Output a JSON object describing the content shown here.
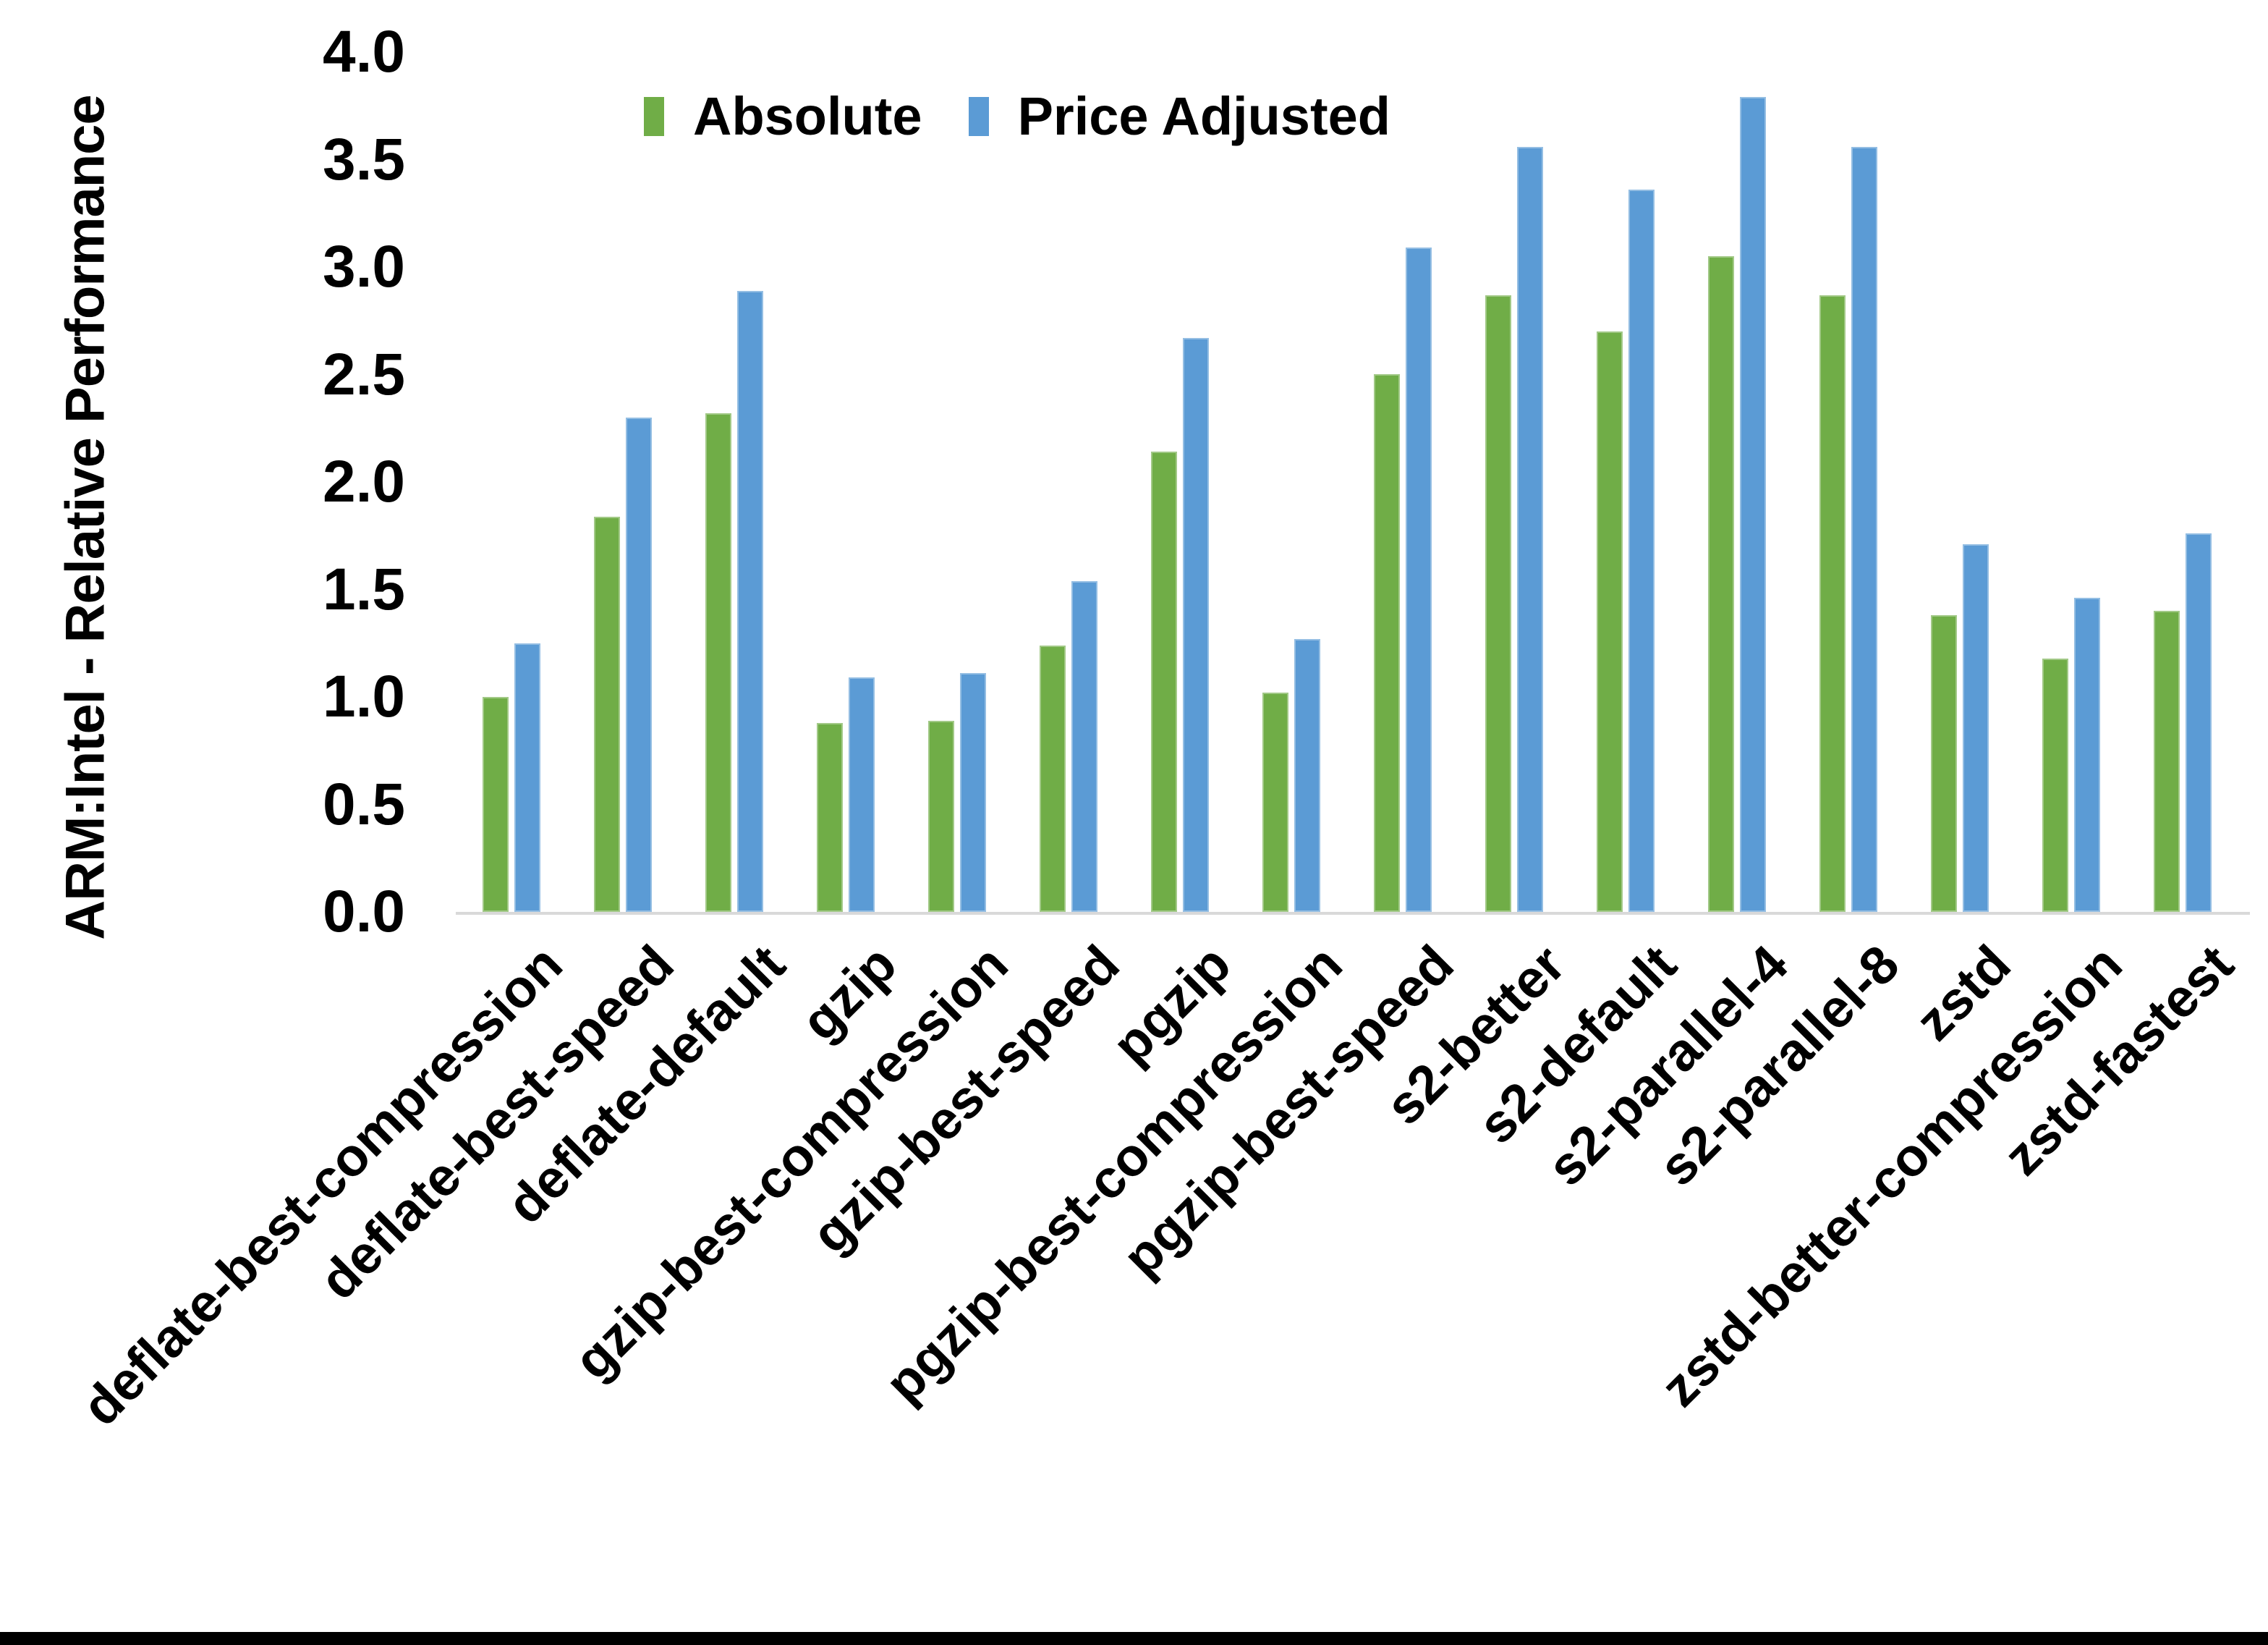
{
  "chart_data": {
    "type": "bar",
    "title": "",
    "xlabel": "",
    "ylabel": "ARM:Intel - Relative Performance",
    "ylim": [
      0.0,
      4.0
    ],
    "ytick_step": 0.5,
    "ytick_labels": [
      "0.0",
      "0.5",
      "1.0",
      "1.5",
      "2.0",
      "2.5",
      "3.0",
      "3.5",
      "4.0"
    ],
    "grid": false,
    "legend_position": "top-center",
    "categories": [
      "deflate-best-compression",
      "deflate-best-speed",
      "deflate-default",
      "gzip",
      "gzip-best-compression",
      "gzip-best-speed",
      "pgzip",
      "pgzip-best-compression",
      "pgzip-best-speed",
      "s2-better",
      "s2-default",
      "s2-parallel-4",
      "s2-parallel-8",
      "zstd",
      "zstd-better-compression",
      "zstd-fastest"
    ],
    "series": [
      {
        "name": "Absolute",
        "color": "#70AD47",
        "values": [
          1.0,
          1.84,
          2.32,
          0.88,
          0.89,
          1.24,
          2.14,
          1.02,
          2.5,
          2.87,
          2.7,
          3.05,
          2.87,
          1.38,
          1.18,
          1.4
        ]
      },
      {
        "name": "Price Adjusted",
        "color": "#5B9BD5",
        "values": [
          1.25,
          2.3,
          2.89,
          1.09,
          1.11,
          1.54,
          2.67,
          1.27,
          3.09,
          3.56,
          3.36,
          3.79,
          3.56,
          1.71,
          1.46,
          1.76
        ]
      }
    ],
    "axis_line_color": "#D9D9D9"
  }
}
